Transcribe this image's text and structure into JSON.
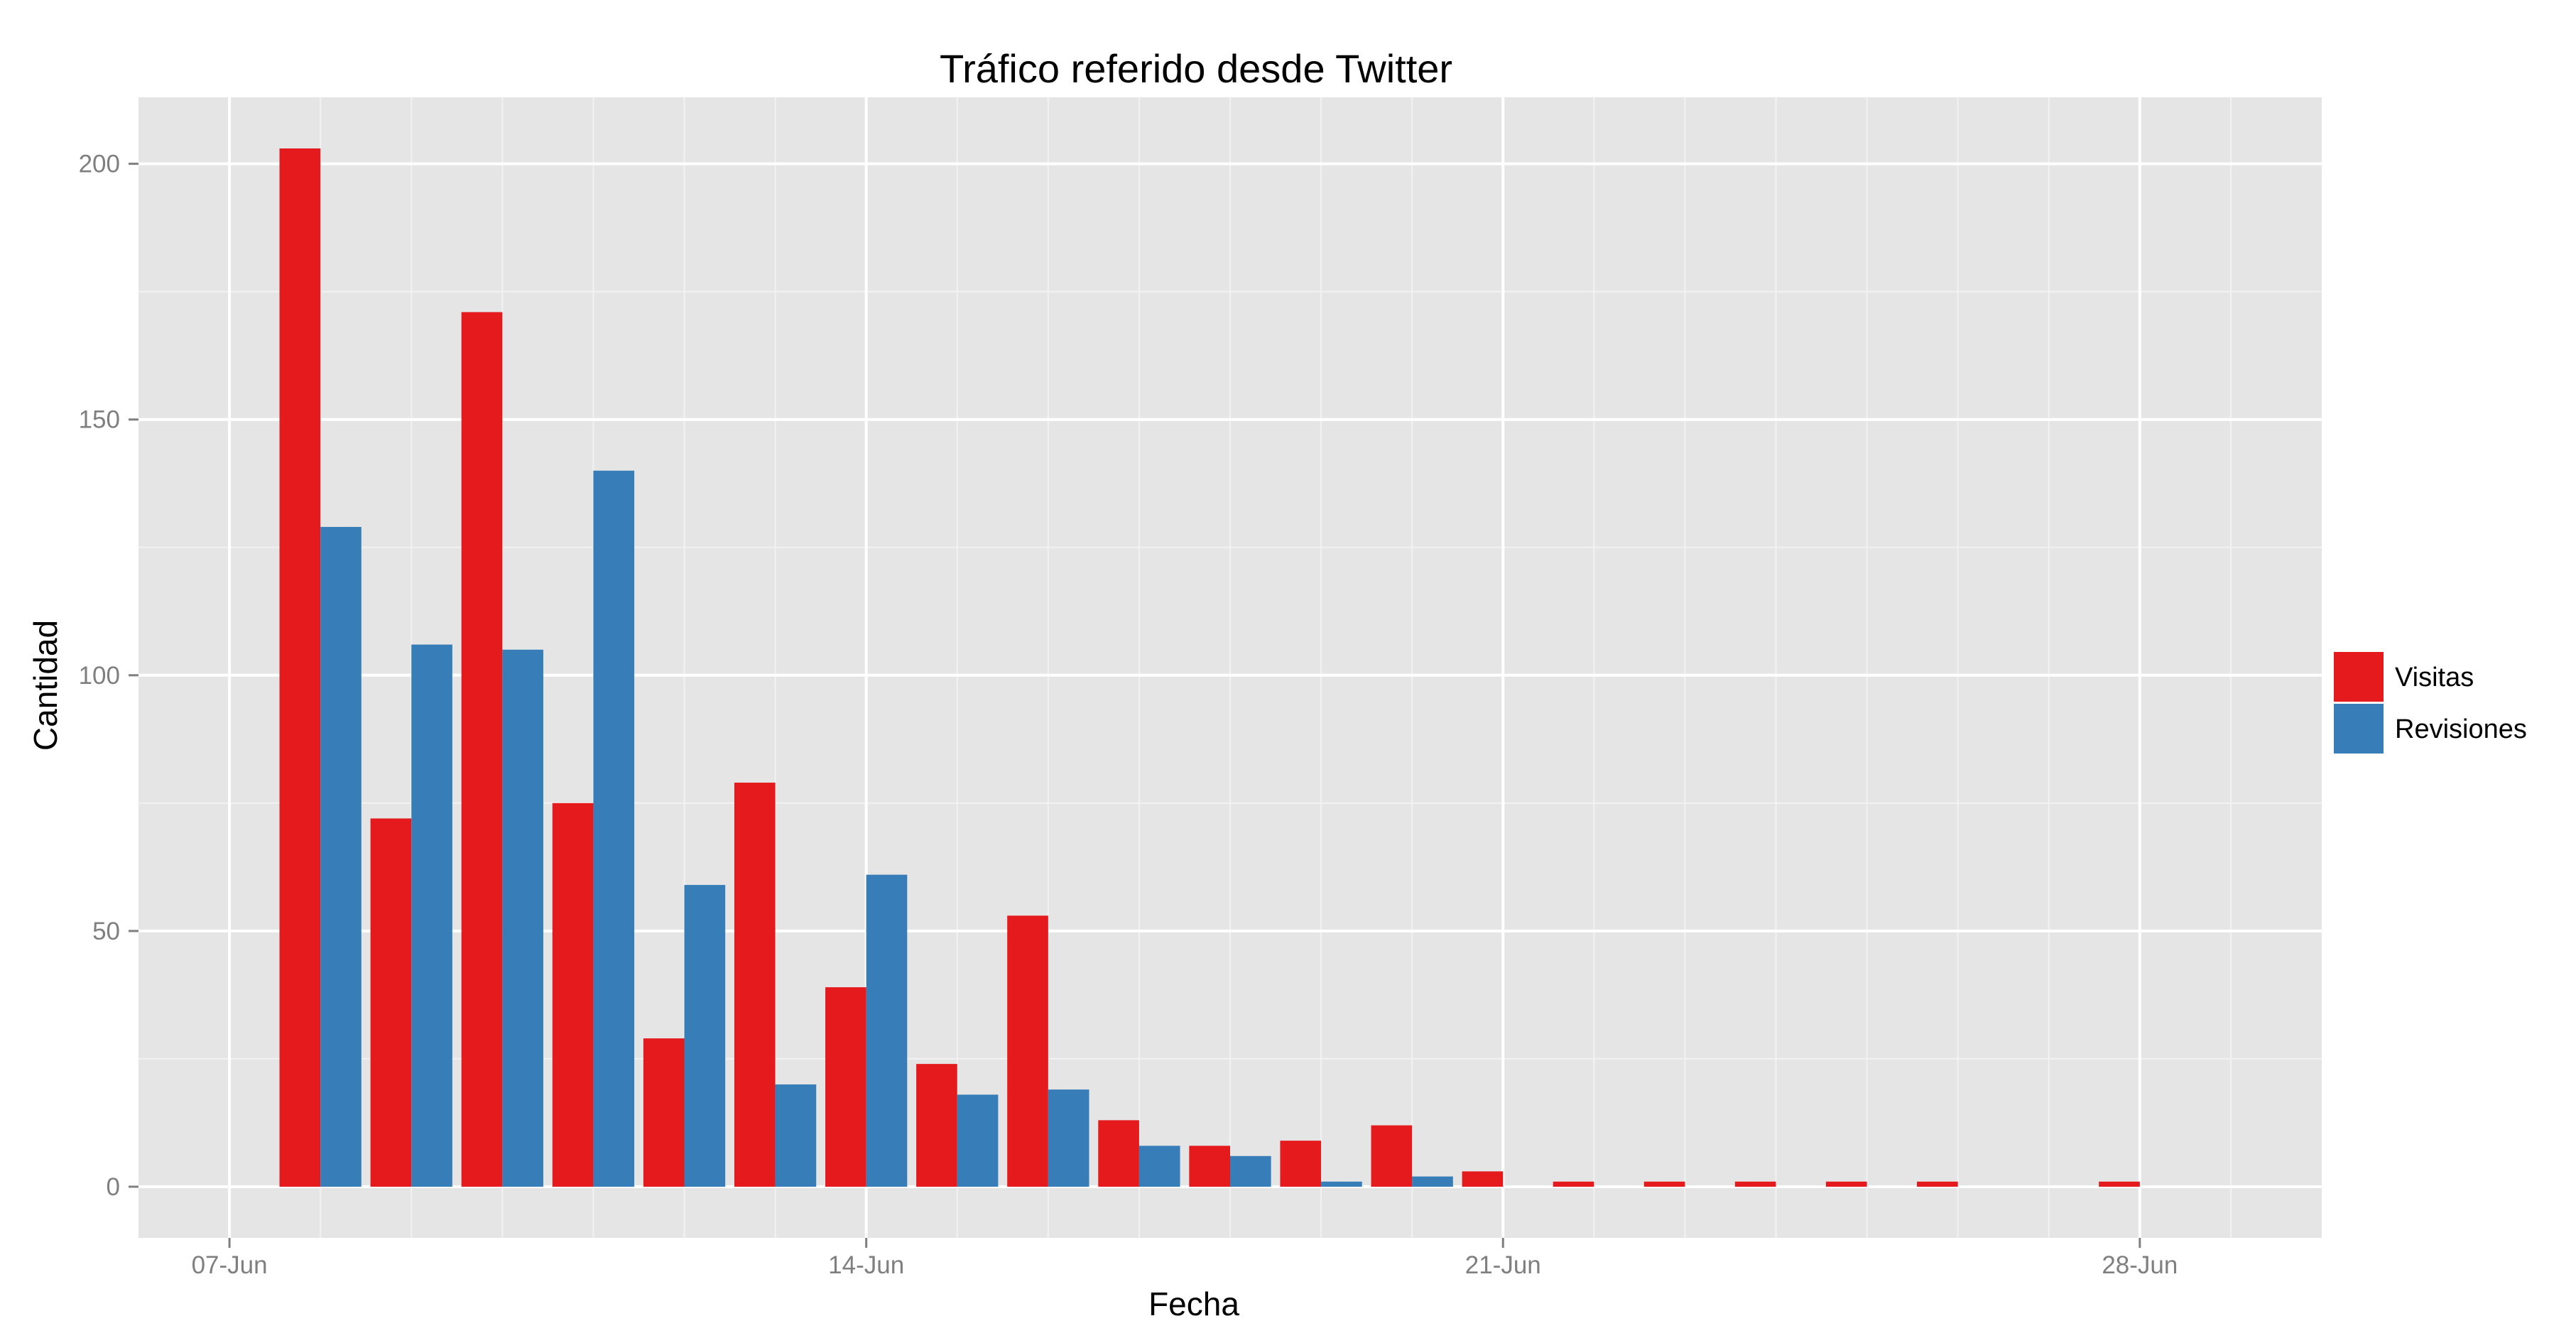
{
  "chart_data": {
    "type": "bar",
    "title": "Tráfico referido desde Twitter",
    "xlabel": "Fecha",
    "ylabel": "Cantidad",
    "x_ticks": [
      "07-Jun",
      "14-Jun",
      "21-Jun",
      "28-Jun"
    ],
    "x_tick_dates": [
      "2013-06-07",
      "2013-06-14",
      "2013-06-21",
      "2013-06-28"
    ],
    "xlim": [
      "2013-06-06",
      "2013-06-30"
    ],
    "y_ticks": [
      0,
      50,
      100,
      150,
      200
    ],
    "ylim": [
      -10,
      213
    ],
    "grid": true,
    "legend_position": "right",
    "categories": [
      "2013-06-08",
      "2013-06-09",
      "2013-06-10",
      "2013-06-11",
      "2013-06-12",
      "2013-06-13",
      "2013-06-14",
      "2013-06-15",
      "2013-06-16",
      "2013-06-17",
      "2013-06-18",
      "2013-06-19",
      "2013-06-20",
      "2013-06-21",
      "2013-06-22",
      "2013-06-23",
      "2013-06-24",
      "2013-06-25",
      "2013-06-26",
      "2013-06-27",
      "2013-06-28"
    ],
    "series": [
      {
        "name": "Visitas",
        "color": "#e41a1c",
        "values": [
          203,
          72,
          171,
          75,
          29,
          79,
          39,
          24,
          53,
          13,
          8,
          9,
          12,
          3,
          1,
          1,
          1,
          1,
          1,
          null,
          1
        ]
      },
      {
        "name": "Revisiones",
        "color": "#377eb8",
        "values": [
          129,
          106,
          105,
          140,
          59,
          20,
          61,
          18,
          19,
          8,
          6,
          1,
          2,
          null,
          null,
          null,
          null,
          null,
          null,
          null,
          null
        ]
      }
    ]
  },
  "colors": {
    "panel_background": "#e5e5e5",
    "grid_major": "#ffffff",
    "grid_minor": "#f2f2f2",
    "legend_background": "#ffffff"
  }
}
